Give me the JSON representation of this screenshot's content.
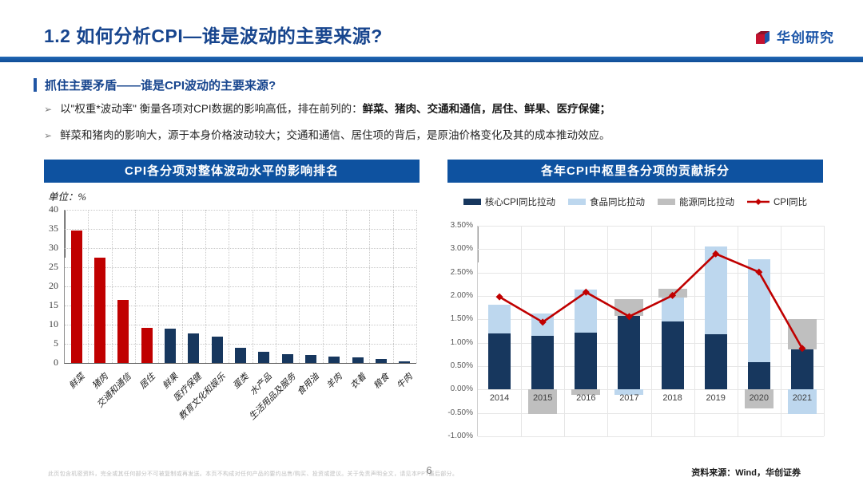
{
  "header": {
    "title": "1.2 如何分析CPI—谁是波动的主要来源?",
    "logo_text": "华创研究"
  },
  "section": {
    "heading": "抓住主要矛盾——谁是CPI波动的主要来源?",
    "bullets": [
      {
        "marker": "➢",
        "normal": "以\"权重*波动率\" 衡量各项对CPI数据的影响高低，排在前列的：",
        "bold": "鲜菜、猪肉、交通和通信，居住、鲜果、医疗保健；"
      },
      {
        "marker": "➢",
        "normal": "鲜菜和猪肉的影响大，源于本身价格波动较大；交通和通信、居住项的背后，是原油价格变化及其的成本推动效应。",
        "bold": ""
      }
    ]
  },
  "chart_data": [
    {
      "type": "bar",
      "title": "CPI各分项对整体波动水平的影响排名",
      "unit_label": "单位：%",
      "categories": [
        "鲜菜",
        "猪肉",
        "交通和通信",
        "居住",
        "鲜果",
        "医疗保健",
        "教育文化和娱乐",
        "蛋类",
        "水产品",
        "生活用品及服务",
        "食用油",
        "羊肉",
        "衣着",
        "粮食",
        "牛肉"
      ],
      "values": [
        34.5,
        27.5,
        16.5,
        9.2,
        9.0,
        7.8,
        6.9,
        4.0,
        3.0,
        2.3,
        2.0,
        1.7,
        1.4,
        1.0,
        0.5
      ],
      "bar_colors": [
        "#c00000",
        "#c00000",
        "#c00000",
        "#c00000",
        "#17375e",
        "#17375e",
        "#17375e",
        "#17375e",
        "#17375e",
        "#17375e",
        "#17375e",
        "#17375e",
        "#17375e",
        "#17375e",
        "#17375e"
      ],
      "ylim": [
        0,
        40
      ],
      "ytick_step": 5,
      "grid": "dotted"
    },
    {
      "type": "stacked-bar-line",
      "title": "各年CPI中枢里各分项的贡献拆分",
      "categories": [
        "2014",
        "2015",
        "2016",
        "2017",
        "2018",
        "2019",
        "2020",
        "2021"
      ],
      "series": [
        {
          "name": "核心CPI同比拉动",
          "color": "#17375e",
          "values": [
            1.2,
            1.15,
            1.22,
            1.57,
            1.45,
            1.18,
            0.58,
            0.86
          ]
        },
        {
          "name": "食品同比拉动",
          "color": "#bdd7ee",
          "values": [
            0.62,
            0.47,
            0.91,
            -0.12,
            0.52,
            1.87,
            2.2,
            -0.53
          ]
        },
        {
          "name": "能源同比拉动",
          "color": "#bfbfbf",
          "values": [
            0.0,
            -0.52,
            -0.11,
            0.36,
            0.18,
            0.0,
            -0.41,
            0.65
          ]
        }
      ],
      "line": {
        "name": "CPI同比",
        "color": "#c00000",
        "values": [
          1.98,
          1.44,
          2.08,
          1.56,
          2.01,
          2.9,
          2.51,
          0.88
        ]
      },
      "ylim": [
        -1.0,
        3.5
      ],
      "ytick_step": 0.5,
      "ytick_format": "percent2",
      "legend_position": "top"
    }
  ],
  "footer": {
    "disclaimer": "此页包含机密资料，完全或其任何部分不可被复制或再发送。本页不构成对任何产品的要约出售/购买、投资或建议。关于免责声明全文，请见本PPT最后部分。",
    "page_number": "6",
    "source": "资料来源：Wind，华创证券"
  },
  "colors": {
    "accent_blue": "#0e52a0",
    "title_blue": "#17458e",
    "highlight_red": "#c00000",
    "navy": "#17375e",
    "light_blue": "#bdd7ee",
    "gray": "#bfbfbf"
  }
}
